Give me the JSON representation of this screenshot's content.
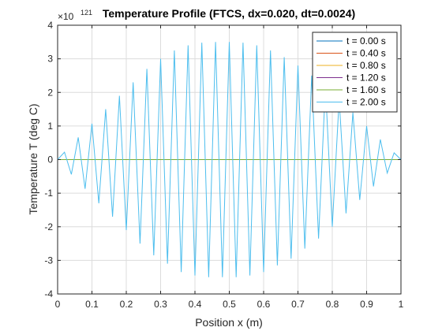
{
  "chart_data": {
    "type": "line",
    "title": "Temperature Profile (FTCS, dx=0.020, dt=0.0024)",
    "xlabel": "Position x (m)",
    "ylabel": "Temperature T (deg C)",
    "y_exponent_label": "×10",
    "y_exponent_value": "121",
    "xlim": [
      0,
      1
    ],
    "ylim": [
      -4,
      4
    ],
    "x_ticks": [
      0,
      0.1,
      0.2,
      0.3,
      0.4,
      0.5,
      0.6,
      0.7,
      0.8,
      0.9,
      1
    ],
    "x_tick_labels": [
      "0",
      "0.1",
      "0.2",
      "0.3",
      "0.4",
      "0.5",
      "0.6",
      "0.7",
      "0.8",
      "0.9",
      "1"
    ],
    "y_ticks": [
      -4,
      -3,
      -2,
      -1,
      0,
      1,
      2,
      3,
      4
    ],
    "y_tick_labels": [
      "-4",
      "-3",
      "-2",
      "-1",
      "0",
      "1",
      "2",
      "3",
      "4"
    ],
    "grid": true,
    "legend_position": "top-right",
    "series": [
      {
        "name": "t = 0.00 s",
        "color": "#0072BD",
        "values": "zero"
      },
      {
        "name": "t = 0.40 s",
        "color": "#D95319",
        "values": "zero"
      },
      {
        "name": "t = 0.80 s",
        "color": "#EDB120",
        "values": "zero"
      },
      {
        "name": "t = 1.20 s",
        "color": "#7E2F8E",
        "values": "zero"
      },
      {
        "name": "t = 1.60 s",
        "color": "#77AC30",
        "values": "zero"
      },
      {
        "name": "t = 2.00 s",
        "color": "#4DBEEE",
        "x": [
          0,
          0.02,
          0.04,
          0.06,
          0.08,
          0.1,
          0.12,
          0.14,
          0.16,
          0.18,
          0.2,
          0.22,
          0.24,
          0.26,
          0.28,
          0.3,
          0.32,
          0.34,
          0.36,
          0.38,
          0.4,
          0.42,
          0.44,
          0.46,
          0.48,
          0.5,
          0.52,
          0.54,
          0.56,
          0.58,
          0.6,
          0.62,
          0.64,
          0.66,
          0.68,
          0.7,
          0.72,
          0.74,
          0.76,
          0.78,
          0.8,
          0.82,
          0.84,
          0.86,
          0.88,
          0.9,
          0.92,
          0.94,
          0.96,
          0.98,
          1
        ],
        "values": [
          0,
          0.22,
          -0.44,
          0.66,
          -0.87,
          1.07,
          -1.3,
          1.5,
          -1.7,
          1.9,
          -2.1,
          2.3,
          -2.5,
          2.7,
          -2.85,
          3.0,
          -3.1,
          3.25,
          -3.35,
          3.4,
          -3.45,
          3.48,
          -3.5,
          3.5,
          -3.5,
          3.5,
          -3.5,
          3.48,
          -3.45,
          3.4,
          -3.35,
          3.25,
          -3.15,
          3.05,
          -2.95,
          2.8,
          -2.65,
          2.5,
          -2.35,
          2.2,
          -2.0,
          1.8,
          -1.6,
          1.4,
          -1.2,
          1.0,
          -0.8,
          0.6,
          -0.4,
          0.2,
          0
        ]
      }
    ]
  }
}
